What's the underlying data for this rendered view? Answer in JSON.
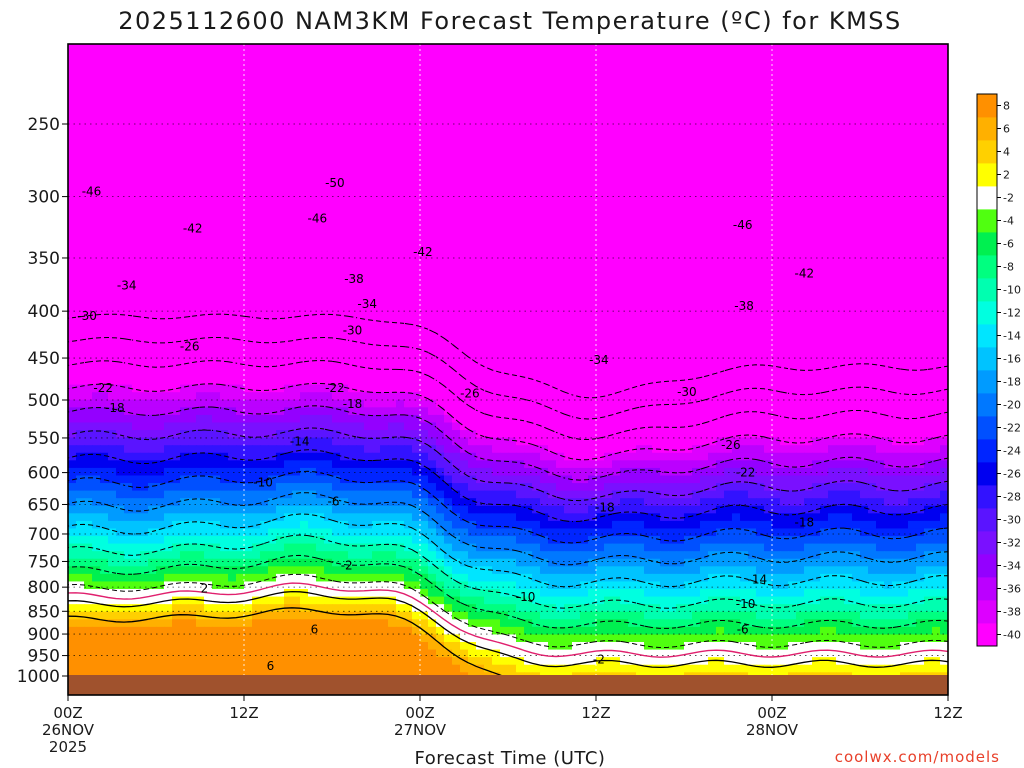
{
  "chart_data": {
    "type": "heatmap",
    "title": "2025112600 NAM3KM Forecast Temperature (ºC) for KMSS",
    "xlabel": "Forecast Time (UTC)",
    "ylabel": "",
    "x_ticks": [
      {
        "hour": 0,
        "label": "00Z",
        "date": "26NOV",
        "year": "2025"
      },
      {
        "hour": 12,
        "label": "12Z"
      },
      {
        "hour": 24,
        "label": "00Z",
        "date": "27NOV"
      },
      {
        "hour": 36,
        "label": "12Z"
      },
      {
        "hour": 48,
        "label": "00Z",
        "date": "28NOV"
      },
      {
        "hour": 60,
        "label": "12Z"
      }
    ],
    "xlim": [
      0,
      60
    ],
    "y_ticks": [
      250,
      300,
      350,
      400,
      450,
      500,
      550,
      600,
      650,
      700,
      750,
      800,
      850,
      900,
      950,
      1000
    ],
    "ylim_hpa": [
      1000,
      195
    ],
    "y_scale": "log",
    "grid": true,
    "colorbar": {
      "placement": "right",
      "levels": [
        -40,
        -38,
        -36,
        -34,
        -32,
        -30,
        -28,
        -26,
        -24,
        -22,
        -20,
        -18,
        -16,
        -14,
        -12,
        -10,
        -8,
        -6,
        -4,
        -2,
        2,
        4,
        6,
        8
      ],
      "colors": [
        "#ff00ff",
        "#dd00ff",
        "#bb00ff",
        "#9400ff",
        "#7a10ff",
        "#5a14ff",
        "#3212ff",
        "#0000f0",
        "#0025ff",
        "#0050ff",
        "#0078ff",
        "#009bff",
        "#00c3ff",
        "#00e5ff",
        "#00ffe0",
        "#00ffb0",
        "#00ff80",
        "#00f050",
        "#50ff10",
        "#ffffff",
        "#ffff00",
        "#ffd000",
        "#ffb000",
        "#ff9000"
      ]
    },
    "contour_labels": [
      {
        "hour": 1.6,
        "hpa": 296,
        "text": "-46"
      },
      {
        "hour": 18.2,
        "hpa": 290,
        "text": "-50"
      },
      {
        "hour": 17.0,
        "hpa": 317,
        "text": "-46"
      },
      {
        "hour": 8.5,
        "hpa": 325,
        "text": "-42"
      },
      {
        "hour": 24.2,
        "hpa": 345,
        "text": "-42"
      },
      {
        "hour": 19.5,
        "hpa": 369,
        "text": "-38"
      },
      {
        "hour": 4.0,
        "hpa": 375,
        "text": "-34"
      },
      {
        "hour": 20.4,
        "hpa": 393,
        "text": "-34"
      },
      {
        "hour": 1.3,
        "hpa": 405,
        "text": "-30"
      },
      {
        "hour": 19.4,
        "hpa": 420,
        "text": "-30"
      },
      {
        "hour": 8.3,
        "hpa": 437,
        "text": "-26"
      },
      {
        "hour": 2.4,
        "hpa": 485,
        "text": "-22"
      },
      {
        "hour": 18.2,
        "hpa": 485,
        "text": "-22"
      },
      {
        "hour": 27.4,
        "hpa": 492,
        "text": "-26"
      },
      {
        "hour": 3.2,
        "hpa": 510,
        "text": "-18"
      },
      {
        "hour": 19.4,
        "hpa": 505,
        "text": "-18"
      },
      {
        "hour": 15.8,
        "hpa": 555,
        "text": "-14"
      },
      {
        "hour": 13.3,
        "hpa": 615,
        "text": "-10"
      },
      {
        "hour": 18.1,
        "hpa": 645,
        "text": "-6"
      },
      {
        "hour": 19.0,
        "hpa": 758,
        "text": "-2"
      },
      {
        "hour": 9.3,
        "hpa": 803,
        "text": "2"
      },
      {
        "hour": 16.8,
        "hpa": 890,
        "text": "6"
      },
      {
        "hour": 13.8,
        "hpa": 975,
        "text": "6"
      },
      {
        "hour": 36.2,
        "hpa": 452,
        "text": "-34"
      },
      {
        "hour": 46.1,
        "hpa": 395,
        "text": "-38"
      },
      {
        "hour": 46.0,
        "hpa": 322,
        "text": "-46"
      },
      {
        "hour": 50.2,
        "hpa": 364,
        "text": "-42"
      },
      {
        "hour": 42.2,
        "hpa": 490,
        "text": "-30"
      },
      {
        "hour": 45.2,
        "hpa": 560,
        "text": "-26"
      },
      {
        "hour": 46.2,
        "hpa": 600,
        "text": "-22"
      },
      {
        "hour": 36.6,
        "hpa": 655,
        "text": "-18"
      },
      {
        "hour": 50.2,
        "hpa": 680,
        "text": "-18"
      },
      {
        "hour": 47.0,
        "hpa": 785,
        "text": "-14"
      },
      {
        "hour": 31.2,
        "hpa": 820,
        "text": "-10"
      },
      {
        "hour": 46.2,
        "hpa": 835,
        "text": "-10"
      },
      {
        "hour": 46.0,
        "hpa": 890,
        "text": "-6"
      },
      {
        "hour": 36.2,
        "hpa": 960,
        "text": "-2"
      }
    ]
  },
  "credit": "coolwx.com/models"
}
